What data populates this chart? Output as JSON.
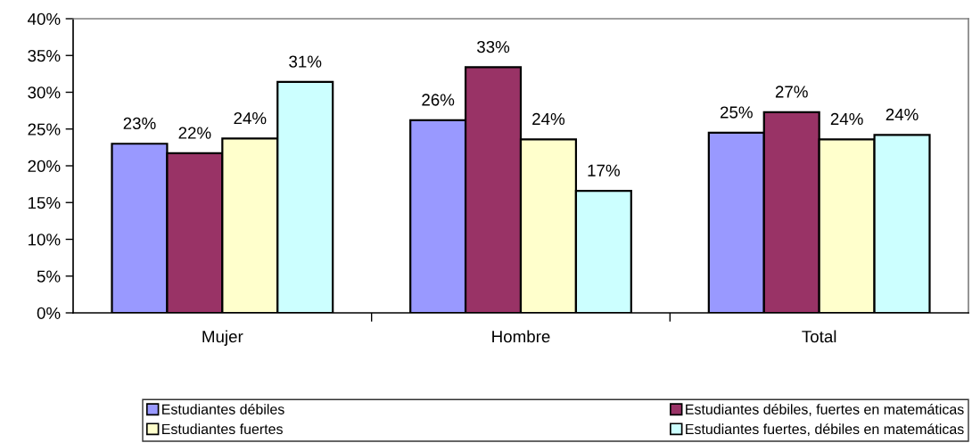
{
  "chart_data": {
    "type": "bar",
    "categories": [
      "Mujer",
      "Hombre",
      "Total"
    ],
    "series": [
      {
        "name": "Estudiantes débiles",
        "color": "#9999ff",
        "values": [
          23.0,
          26.2,
          24.5
        ],
        "value_labels": [
          "23%",
          "26%",
          "25%"
        ]
      },
      {
        "name": "Estudiantes débiles, fuertes en matemáticas",
        "color": "#993366",
        "values": [
          21.7,
          33.4,
          27.3
        ],
        "value_labels": [
          "22%",
          "33%",
          "27%"
        ]
      },
      {
        "name": "Estudiantes fuertes",
        "color": "#ffffcc",
        "values": [
          23.7,
          23.6,
          23.6
        ],
        "value_labels": [
          "24%",
          "24%",
          "24%"
        ]
      },
      {
        "name": "Estudiantes fuertes, débiles en matemáticas",
        "color": "#ccffff",
        "values": [
          31.4,
          16.6,
          24.2
        ],
        "value_labels": [
          "31%",
          "17%",
          "24%"
        ]
      }
    ],
    "ylim": [
      0,
      40
    ],
    "yticks": [
      {
        "value": 0,
        "label": "0%"
      },
      {
        "value": 5,
        "label": "5%"
      },
      {
        "value": 10,
        "label": "10%"
      },
      {
        "value": 15,
        "label": "15%"
      },
      {
        "value": 20,
        "label": "20%"
      },
      {
        "value": 25,
        "label": "25%"
      },
      {
        "value": 30,
        "label": "30%"
      },
      {
        "value": 35,
        "label": "35%"
      },
      {
        "value": 40,
        "label": "40%"
      }
    ],
    "grid": false,
    "legend": "bottom"
  }
}
